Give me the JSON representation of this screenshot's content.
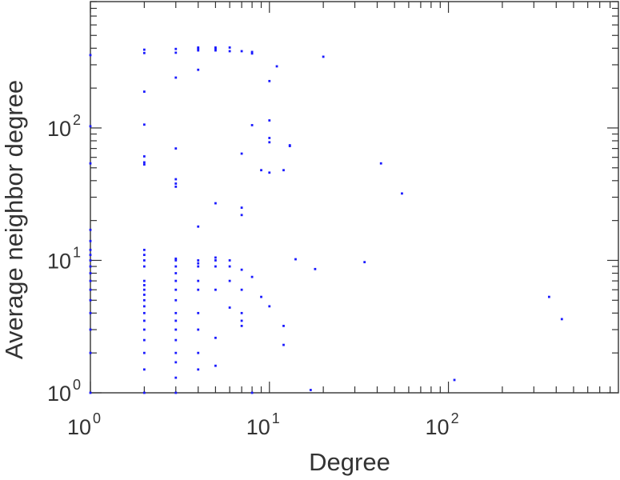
{
  "chart_data": {
    "type": "scatter",
    "title": "",
    "xlabel": "Degree",
    "ylabel": "Average neighbor degree",
    "xscale": "log",
    "yscale": "log",
    "xlim": [
      1,
      890
    ],
    "ylim": [
      1,
      900
    ],
    "grid": false,
    "legend": "none",
    "marker_color": "#1a1aff",
    "xticks": [
      {
        "base": "10",
        "exp": "0",
        "value": 1
      },
      {
        "base": "10",
        "exp": "1",
        "value": 10
      },
      {
        "base": "10",
        "exp": "2",
        "value": 100
      }
    ],
    "yticks": [
      {
        "base": "10",
        "exp": "0",
        "value": 1
      },
      {
        "base": "10",
        "exp": "1",
        "value": 10
      },
      {
        "base": "10",
        "exp": "2",
        "value": 100
      }
    ],
    "points": [
      [
        1,
        355
      ],
      [
        1,
        103
      ],
      [
        1,
        54
      ],
      [
        1,
        17
      ],
      [
        1,
        14
      ],
      [
        1,
        12
      ],
      [
        1,
        11
      ],
      [
        1,
        10
      ],
      [
        1,
        9
      ],
      [
        1,
        8
      ],
      [
        1,
        7
      ],
      [
        1,
        6
      ],
      [
        1,
        5
      ],
      [
        1,
        4
      ],
      [
        1,
        3
      ],
      [
        1,
        2
      ],
      [
        1,
        1
      ],
      [
        2,
        390
      ],
      [
        2,
        368
      ],
      [
        2,
        188
      ],
      [
        2,
        106
      ],
      [
        2,
        61
      ],
      [
        2,
        55
      ],
      [
        2,
        53
      ],
      [
        2,
        12
      ],
      [
        2,
        11
      ],
      [
        2,
        10
      ],
      [
        2,
        9
      ],
      [
        2,
        7
      ],
      [
        2,
        6.5
      ],
      [
        2,
        6
      ],
      [
        2,
        5.5
      ],
      [
        2,
        5
      ],
      [
        2,
        4.5
      ],
      [
        2,
        4
      ],
      [
        2,
        3.5
      ],
      [
        2,
        3
      ],
      [
        2,
        2.5
      ],
      [
        2,
        2
      ],
      [
        2,
        1.5
      ],
      [
        2,
        1
      ],
      [
        3,
        395
      ],
      [
        3,
        370
      ],
      [
        3,
        240
      ],
      [
        3,
        70
      ],
      [
        3,
        41
      ],
      [
        3,
        38
      ],
      [
        3,
        36
      ],
      [
        3,
        10.3
      ],
      [
        3,
        10
      ],
      [
        3,
        9
      ],
      [
        3,
        8
      ],
      [
        3,
        7
      ],
      [
        3,
        6
      ],
      [
        3,
        5
      ],
      [
        3,
        4
      ],
      [
        3,
        3.5
      ],
      [
        3,
        3
      ],
      [
        3,
        2.5
      ],
      [
        3,
        2
      ],
      [
        3,
        1.7
      ],
      [
        3,
        1.3
      ],
      [
        3,
        1
      ],
      [
        4,
        405
      ],
      [
        4,
        395
      ],
      [
        4,
        385
      ],
      [
        4,
        275
      ],
      [
        4,
        18
      ],
      [
        4,
        10
      ],
      [
        4,
        9.5
      ],
      [
        4,
        9
      ],
      [
        4,
        7
      ],
      [
        4,
        6
      ],
      [
        4,
        4
      ],
      [
        4,
        3
      ],
      [
        4,
        2
      ],
      [
        4,
        1.5
      ],
      [
        5,
        405
      ],
      [
        5,
        395
      ],
      [
        5,
        385
      ],
      [
        5,
        27
      ],
      [
        5,
        10.5
      ],
      [
        5,
        10
      ],
      [
        5,
        9
      ],
      [
        5,
        6
      ],
      [
        5,
        2.6
      ],
      [
        5,
        1.6
      ],
      [
        6,
        405
      ],
      [
        6,
        380
      ],
      [
        6,
        10
      ],
      [
        6,
        9
      ],
      [
        6,
        7
      ],
      [
        6,
        4.4
      ],
      [
        7,
        380
      ],
      [
        7,
        64
      ],
      [
        7,
        25
      ],
      [
        7,
        22
      ],
      [
        7,
        8.5
      ],
      [
        7,
        6
      ],
      [
        7,
        4
      ],
      [
        7,
        3.5
      ],
      [
        7,
        3.2
      ],
      [
        8,
        375
      ],
      [
        8,
        365
      ],
      [
        8,
        105
      ],
      [
        8,
        7.5
      ],
      [
        8,
        1
      ],
      [
        9,
        48
      ],
      [
        9,
        5.3
      ],
      [
        10,
        226
      ],
      [
        10,
        114
      ],
      [
        10,
        84
      ],
      [
        10,
        78
      ],
      [
        10,
        46
      ],
      [
        10,
        4.5
      ],
      [
        11,
        292
      ],
      [
        12,
        48
      ],
      [
        12,
        3.2
      ],
      [
        12,
        2.3
      ],
      [
        13,
        74
      ],
      [
        13,
        73
      ],
      [
        14,
        10.2
      ],
      [
        17,
        1.05
      ],
      [
        18,
        8.6
      ],
      [
        20,
        345
      ],
      [
        34,
        9.7
      ],
      [
        42,
        54
      ],
      [
        55,
        32
      ],
      [
        108,
        1.25
      ],
      [
        365,
        5.3
      ],
      [
        430,
        3.6
      ]
    ]
  }
}
